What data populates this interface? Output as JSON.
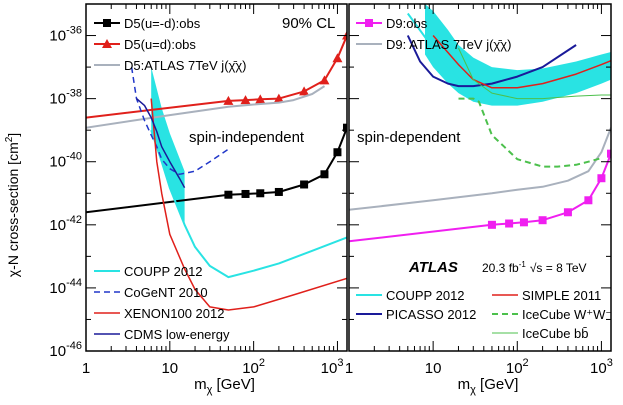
{
  "figure": {
    "ylabel_main": "χ-N cross-section [cm",
    "ylabel_sup": "2",
    "ylabel_close": "]"
  },
  "chart_data": [
    {
      "type": "line",
      "panel": "left",
      "xscale": "log",
      "yscale": "log",
      "xlim": [
        1,
        1300
      ],
      "ylim": [
        1e-46,
        1e-35
      ],
      "x_ticks": [
        {
          "v": 1,
          "base": "1",
          "exp": ""
        },
        {
          "v": 10,
          "base": "10",
          "exp": ""
        },
        {
          "v": 100,
          "base": "10",
          "exp": "2"
        },
        {
          "v": 1000,
          "base": "10",
          "exp": "3"
        }
      ],
      "y_ticks": [
        {
          "v": -36,
          "base": "10",
          "exp": "-36"
        },
        {
          "v": -38,
          "base": "10",
          "exp": "-38"
        },
        {
          "v": -40,
          "base": "10",
          "exp": "-40"
        },
        {
          "v": -42,
          "base": "10",
          "exp": "-42"
        },
        {
          "v": -44,
          "base": "10",
          "exp": "-44"
        },
        {
          "v": -46,
          "base": "10",
          "exp": "-46"
        }
      ],
      "xlabel_main": "m",
      "xlabel_sub": "χ",
      "xlabel_unit": " [GeV]",
      "annotations": {
        "cl": "90% CL",
        "region": "spin-independent"
      },
      "series": [
        {
          "name": "D5(u=-d):obs",
          "color": "#000000",
          "marker": "square",
          "style": "solid",
          "width": 2,
          "x": [
            1,
            50,
            80,
            120,
            200,
            400,
            700,
            1000,
            1300
          ],
          "y": [
            2.5e-42,
            9e-42,
            9.5e-42,
            1e-41,
            1.1e-41,
            1.9e-41,
            4e-41,
            2e-40,
            1.2e-39
          ],
          "legend": {
            "box": "top",
            "row": 0
          }
        },
        {
          "name": "D5(u=d):obs",
          "color": "#e0201b",
          "marker": "triangle",
          "style": "solid",
          "width": 2,
          "x": [
            1,
            50,
            80,
            120,
            200,
            400,
            700,
            1000,
            1300
          ],
          "y": [
            2.5e-39,
            8.5e-39,
            9e-39,
            9.5e-39,
            1e-38,
            1.7e-38,
            3.8e-38,
            1.9e-37,
            1e-36
          ],
          "legend": {
            "box": "top",
            "row": 1
          }
        },
        {
          "name": "D5:ATLAS 7TeV j(χ̄χ)",
          "color": "#a9b1bd",
          "marker": "none",
          "style": "solid",
          "width": 2,
          "x": [
            1,
            10,
            50,
            100,
            200,
            300,
            500,
            700
          ],
          "y": [
            1.2e-39,
            3e-39,
            5.5e-39,
            6.5e-39,
            7.5e-39,
            9e-39,
            1.4e-38,
            2.5e-38
          ],
          "legend": {
            "box": "top",
            "row": 2
          }
        },
        {
          "name": "COUPP 2012",
          "color": "#29e3e3",
          "marker": "none",
          "style": "solid",
          "width": 2,
          "x": [
            6,
            8,
            10,
            15,
            20,
            30,
            50,
            100,
            200,
            500,
            1300
          ],
          "y": [
            1e-39,
            1e-40,
            1.5e-41,
            1e-42,
            2e-43,
            5e-44,
            2.2e-44,
            3.5e-44,
            6e-44,
            1.5e-43,
            4e-43
          ],
          "legend": {
            "box": "bottom",
            "row": 0
          }
        },
        {
          "name": "CoGeNT 2010",
          "color": "#2137c9",
          "marker": "none",
          "style": "dashed",
          "width": 1.5,
          "x": [
            3.5,
            4,
            5,
            6,
            7,
            8,
            10,
            13,
            20,
            30,
            50
          ],
          "y": [
            1e-37,
            1e-38,
            2e-39,
            7e-40,
            3e-40,
            1.2e-40,
            6e-41,
            4e-41,
            5e-41,
            1e-40,
            2.5e-40
          ],
          "legend": {
            "box": "bottom",
            "row": 1
          }
        },
        {
          "name": "XENON100 2012",
          "color": "#e0201b",
          "marker": "none",
          "style": "solid",
          "width": 1.5,
          "x": [
            6,
            7,
            8,
            10,
            15,
            20,
            30,
            50,
            100,
            300,
            1300
          ],
          "y": [
            1e-38,
            1e-40,
            1e-41,
            5e-43,
            4e-44,
            9e-45,
            2.5e-45,
            2e-45,
            2.5e-45,
            6e-45,
            2e-44
          ],
          "legend": {
            "box": "bottom",
            "row": 2
          }
        },
        {
          "name": "CDMS low-energy",
          "color": "#1a1a99",
          "marker": "none",
          "style": "solid",
          "width": 1.5,
          "x": [
            4,
            5,
            6,
            7,
            8,
            10,
            13,
            15
          ],
          "y": [
            1e-38,
            6e-39,
            2.5e-39,
            9e-40,
            3e-40,
            1e-40,
            3e-41,
            1.5e-41
          ],
          "legend": {
            "box": "bottom",
            "row": 3
          }
        }
      ],
      "bands": [
        {
          "series": "COUPP 2012",
          "x": [
            6,
            8,
            10,
            15
          ],
          "lo": [
            1e-39,
            1e-40,
            1.5e-41,
            1e-42
          ],
          "hi": [
            1e-37,
            5e-39,
            8e-40,
            5e-41
          ]
        }
      ]
    },
    {
      "type": "line",
      "panel": "right",
      "xscale": "log",
      "yscale": "log",
      "xlim": [
        1,
        1300
      ],
      "ylim": [
        1e-46,
        1e-35
      ],
      "x_ticks": [
        {
          "v": 1,
          "base": "1",
          "exp": ""
        },
        {
          "v": 10,
          "base": "10",
          "exp": ""
        },
        {
          "v": 100,
          "base": "10",
          "exp": "2"
        },
        {
          "v": 1000,
          "base": "10",
          "exp": "3"
        }
      ],
      "xlabel_main": "m",
      "xlabel_sub": "χ",
      "xlabel_unit": " [GeV]",
      "annotations": {
        "region": "spin-dependent",
        "atlas": "ATLAS",
        "lumi_pre": "20.3 fb",
        "lumi_sup": "-1",
        "sqrt": "√s = 8 TeV"
      },
      "series": [
        {
          "name": "D9:obs",
          "color": "#f01ff0",
          "marker": "square",
          "style": "solid",
          "width": 2,
          "x": [
            1,
            50,
            80,
            120,
            200,
            400,
            700,
            1000,
            1300
          ],
          "y": [
            3e-43,
            1e-42,
            1.1e-42,
            1.2e-42,
            1.4e-42,
            2.5e-42,
            6e-42,
            3e-41,
            1.8e-40
          ],
          "legend": {
            "box": "top",
            "row": 0
          }
        },
        {
          "name": "D9: ATLAS 7TeV j(χ̄χ)",
          "color": "#a9b1bd",
          "marker": "none",
          "style": "solid",
          "width": 2,
          "x": [
            1,
            10,
            50,
            100,
            200,
            400,
            700,
            1000,
            1300
          ],
          "y": [
            3e-42,
            6e-42,
            1e-41,
            1.3e-41,
            1.6e-41,
            2.5e-41,
            5e-41,
            2e-40,
            1.2e-39
          ],
          "legend": {
            "box": "top",
            "row": 1
          }
        },
        {
          "name": "COUPP 2012",
          "color": "#29e3e3",
          "marker": "none",
          "style": "solid",
          "width": 2,
          "x": [
            5,
            10,
            20,
            30,
            50,
            100,
            200,
            500,
            1000,
            1300
          ],
          "y": [
            5e-36,
            4e-37,
            4e-38,
            2.2e-38,
            1.6e-38,
            1.8e-38,
            2.5e-38,
            5e-38,
            1e-37,
            1.4e-37
          ],
          "legend": {
            "box": "bottom",
            "row": 0
          }
        },
        {
          "name": "PICASSO 2012",
          "color": "#1a1a99",
          "marker": "none",
          "style": "solid",
          "width": 2,
          "x": [
            5,
            7,
            10,
            15,
            20,
            30,
            50,
            100,
            200,
            500
          ],
          "y": [
            1e-36,
            1.5e-37,
            5e-38,
            3e-38,
            2.5e-38,
            2.5e-38,
            3e-38,
            5e-38,
            1e-37,
            5e-37
          ],
          "legend": {
            "box": "bottom",
            "row": 1
          }
        },
        {
          "name": "SIMPLE 2011",
          "color": "#e0201b",
          "marker": "none",
          "style": "solid",
          "width": 1.5,
          "x": [
            10,
            20,
            30,
            50,
            100,
            200,
            500,
            1000,
            1300
          ],
          "y": [
            1e-36,
            1.2e-37,
            4e-38,
            2.2e-38,
            2.2e-38,
            3e-38,
            6e-38,
            1.2e-37,
            1.6e-37
          ],
          "legend": {
            "box": "bottom",
            "row": 2
          }
        },
        {
          "name": "IceCube W⁺W⁻",
          "color": "#4cc04c",
          "marker": "none",
          "style": "dashed",
          "width": 2,
          "x": [
            20,
            30,
            35,
            50,
            70,
            100,
            200,
            300,
            500,
            700,
            1000
          ],
          "y": [
            1e-38,
            1e-38,
            8e-39,
            7e-40,
            3e-40,
            1.2e-40,
            7e-41,
            7e-41,
            8e-41,
            1e-40,
            1.3e-40
          ],
          "legend": {
            "box": "bottom",
            "row": 3
          }
        },
        {
          "name": "IceCube bb̄",
          "color": "#4cc04c",
          "marker": "none",
          "style": "solid",
          "width": 1,
          "x": [
            20,
            30,
            50,
            100,
            200,
            500,
            1000,
            1300
          ],
          "y": [
            4e-37,
            4e-38,
            1.5e-38,
            1e-38,
            1e-38,
            1.2e-38,
            1.3e-38,
            1.3e-38
          ],
          "legend": {
            "box": "bottom",
            "row": 4
          }
        }
      ],
      "bands": [
        {
          "series": "COUPP 2012",
          "x": [
            8,
            10,
            15,
            20,
            30,
            50,
            100,
            200,
            500,
            1000,
            1300
          ],
          "lo": [
            2.5e-37,
            1e-37,
            3e-38,
            1.5e-38,
            8e-39,
            6e-39,
            6e-39,
            8e-39,
            1.5e-38,
            3e-38,
            4e-38
          ],
          "hi": [
            1e-35,
            6e-36,
            1.5e-36,
            5e-37,
            2e-37,
            1e-37,
            8e-38,
            9e-38,
            1.5e-37,
            2.5e-37,
            3e-37
          ]
        }
      ]
    }
  ]
}
